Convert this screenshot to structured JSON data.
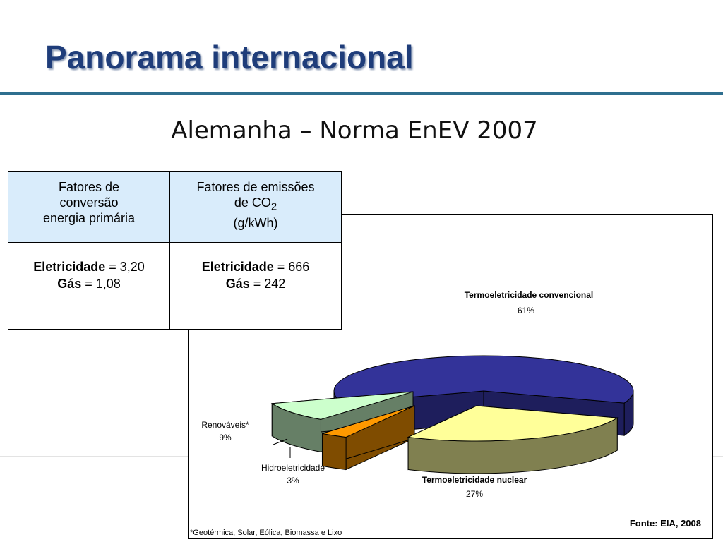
{
  "slide": {
    "title": "Panorama internacional",
    "subtitle": "Alemanha – Norma EnEV 2007"
  },
  "table": {
    "headers": [
      {
        "line1": "Fatores de",
        "line2": "conversão",
        "line3": "energia primária"
      },
      {
        "line1": "Fatores de emissões",
        "line2_prefix": "de CO",
        "line2_sub": "2",
        "line3": "(g/kWh)"
      }
    ],
    "rows": [
      {
        "label1": "Eletricidade",
        "value1": " = 3,20",
        "label2": "Gás",
        "value2": " = 1,08"
      },
      {
        "label1": "Eletricidade",
        "value1": " = 666",
        "label2": "Gás",
        "value2": " = 242"
      }
    ]
  },
  "chart_data": {
    "type": "pie",
    "three_d": true,
    "source": "Fonte: EIA, 2008",
    "footnote": "*Geotérmica, Solar, Eólica, Biomassa e Lixo",
    "slices": [
      {
        "name": "Termoeletricidade convencional",
        "value": 61,
        "label": "61%",
        "color": "#333399",
        "side_color": "#1e1e5c",
        "bold": true
      },
      {
        "name": "Termoeletricidade nuclear",
        "value": 27,
        "label": "27%",
        "color": "#ffff99",
        "side_color": "#808050",
        "bold": true
      },
      {
        "name": "Hidroeletricidade",
        "value": 3,
        "label": "3%",
        "color": "#ff9900",
        "side_color": "#7f4c00",
        "bold": false
      },
      {
        "name": "Renováveis*",
        "value": 9,
        "label": "9%",
        "color": "#ccffcc",
        "side_color": "#667f66",
        "bold": false
      }
    ]
  }
}
